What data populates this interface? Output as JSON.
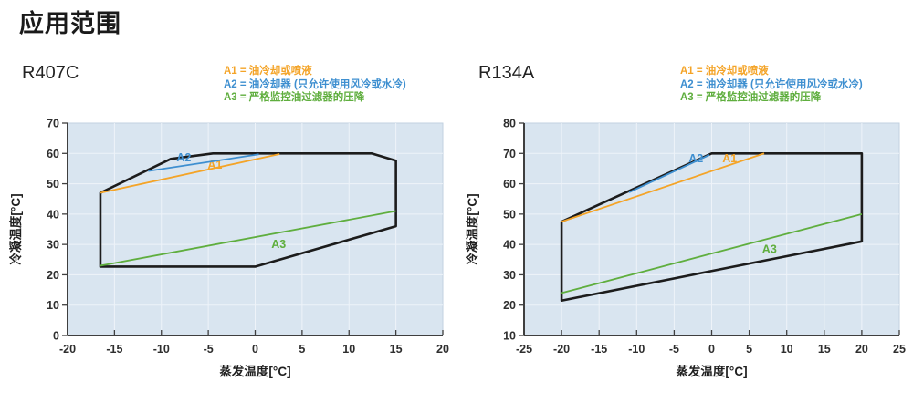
{
  "page": {
    "title": "应用范围"
  },
  "colors": {
    "a1_orange": "#F4A428",
    "a2_blue": "#3E8FD0",
    "a3_green": "#5FAE3E",
    "envelope": "#1c1c1c",
    "plot_bg": "#d9e5f0",
    "plot_border": "#c2d1e0",
    "grid": "#eef3f9",
    "axis": "#3f3f3f",
    "tick_text": "#2e2e2e",
    "axis_title_text": "#1f1f1f"
  },
  "legend": [
    {
      "name": "A1",
      "label": "A1 = 油冷却或喷液",
      "color": "#F4A428"
    },
    {
      "name": "A2",
      "label": "A2 = 油冷却器 (只允许使用风冷或水冷)",
      "color": "#3E8FD0"
    },
    {
      "name": "A3",
      "label": "A3 = 严格监控油过滤器的压降",
      "color": "#5FAE3E"
    }
  ],
  "chart_data": [
    {
      "type": "line",
      "title": "R407C",
      "xlabel": "蒸发温度[°C]",
      "ylabel": "冷凝温度[°C]",
      "xlim": [
        -20,
        20
      ],
      "xticks": [
        -20,
        -15,
        -10,
        -5,
        0,
        5,
        10,
        15,
        20
      ],
      "ylim": [
        0,
        70
      ],
      "yticks": [
        0,
        10,
        20,
        30,
        40,
        50,
        60,
        70
      ],
      "grid": true,
      "envelope": [
        [
          -16.5,
          47
        ],
        [
          -9,
          58.2
        ],
        [
          -4.5,
          60
        ],
        [
          12.4,
          60
        ],
        [
          15,
          57.6
        ],
        [
          15,
          36
        ],
        [
          0,
          22.7
        ],
        [
          -16.5,
          22.7
        ]
      ],
      "series": [
        {
          "name": "A1",
          "color": "#F4A428",
          "points": [
            [
              -16.5,
              47
            ],
            [
              2.6,
              59.8
            ]
          ],
          "label_at": [
            -4.3,
            56.4
          ]
        },
        {
          "name": "A2",
          "color": "#3E8FD0",
          "points": [
            [
              -11.4,
              54.2
            ],
            [
              0.4,
              59.7
            ]
          ],
          "label_at": [
            -7.6,
            58.8
          ]
        },
        {
          "name": "A3",
          "color": "#5FAE3E",
          "points": [
            [
              -16.5,
              23
            ],
            [
              15,
              41
            ]
          ],
          "label_at": [
            2.5,
            30.2
          ]
        }
      ]
    },
    {
      "type": "line",
      "title": "R134A",
      "xlabel": "蒸发温度[°C]",
      "ylabel": "冷凝温度[°C]",
      "xlim": [
        -25,
        25
      ],
      "xticks": [
        -25,
        -20,
        -15,
        -10,
        -5,
        0,
        5,
        10,
        15,
        20,
        25
      ],
      "ylim": [
        10,
        80
      ],
      "yticks": [
        10,
        20,
        30,
        40,
        50,
        60,
        70,
        80
      ],
      "grid": true,
      "envelope": [
        [
          -20,
          47.5
        ],
        [
          0,
          70
        ],
        [
          20,
          70
        ],
        [
          20,
          41
        ],
        [
          -20,
          21.5
        ]
      ],
      "series": [
        {
          "name": "A1",
          "color": "#F4A428",
          "points": [
            [
              -20,
              47.5
            ],
            [
              7,
              70
            ]
          ],
          "label_at": [
            2.4,
            68.5
          ]
        },
        {
          "name": "A2",
          "color": "#3E8FD0",
          "points": [
            [
              -11,
              57.2
            ],
            [
              -0.3,
              69.5
            ]
          ],
          "label_at": [
            -2.1,
            68.5
          ]
        },
        {
          "name": "A3",
          "color": "#5FAE3E",
          "points": [
            [
              -20,
              24
            ],
            [
              20,
              50
            ]
          ],
          "label_at": [
            7.7,
            38.6
          ]
        }
      ]
    }
  ]
}
